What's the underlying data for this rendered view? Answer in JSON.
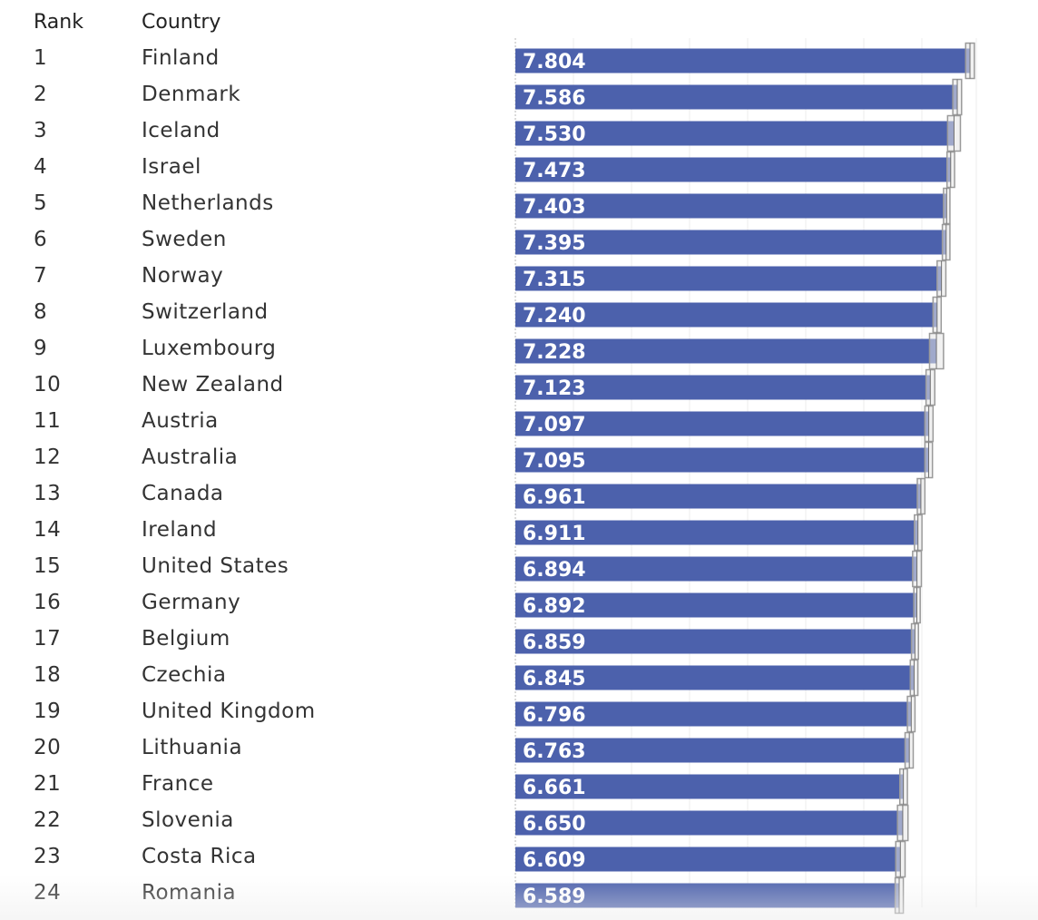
{
  "header": {
    "rank_label": "Rank",
    "country_label": "Country"
  },
  "chart_data": {
    "type": "bar",
    "orientation": "horizontal",
    "title": "",
    "xlabel": "",
    "ylabel": "",
    "bar_color": "#4c61ac",
    "ci_color": "#9a9a9a",
    "grid": true,
    "rows": [
      {
        "rank": "1",
        "country": "Finland",
        "value": 7.804,
        "label": "7.804"
      },
      {
        "rank": "2",
        "country": "Denmark",
        "value": 7.586,
        "label": "7.586"
      },
      {
        "rank": "3",
        "country": "Iceland",
        "value": 7.53,
        "label": "7.530"
      },
      {
        "rank": "4",
        "country": "Israel",
        "value": 7.473,
        "label": "7.473"
      },
      {
        "rank": "5",
        "country": "Netherlands",
        "value": 7.403,
        "label": "7.403"
      },
      {
        "rank": "6",
        "country": "Sweden",
        "value": 7.395,
        "label": "7.395"
      },
      {
        "rank": "7",
        "country": "Norway",
        "value": 7.315,
        "label": "7.315"
      },
      {
        "rank": "8",
        "country": "Switzerland",
        "value": 7.24,
        "label": "7.240"
      },
      {
        "rank": "9",
        "country": "Luxembourg",
        "value": 7.228,
        "label": "7.228"
      },
      {
        "rank": "10",
        "country": "New Zealand",
        "value": 7.123,
        "label": "7.123"
      },
      {
        "rank": "11",
        "country": "Austria",
        "value": 7.097,
        "label": "7.097"
      },
      {
        "rank": "12",
        "country": "Australia",
        "value": 7.095,
        "label": "7.095"
      },
      {
        "rank": "13",
        "country": "Canada",
        "value": 6.961,
        "label": "6.961"
      },
      {
        "rank": "14",
        "country": "Ireland",
        "value": 6.911,
        "label": "6.911"
      },
      {
        "rank": "15",
        "country": "United States",
        "value": 6.894,
        "label": "6.894"
      },
      {
        "rank": "16",
        "country": "Germany",
        "value": 6.892,
        "label": "6.892"
      },
      {
        "rank": "17",
        "country": "Belgium",
        "value": 6.859,
        "label": "6.859"
      },
      {
        "rank": "18",
        "country": "Czechia",
        "value": 6.845,
        "label": "6.845"
      },
      {
        "rank": "19",
        "country": "United Kingdom",
        "value": 6.796,
        "label": "6.796"
      },
      {
        "rank": "20",
        "country": "Lithuania",
        "value": 6.763,
        "label": "6.763"
      },
      {
        "rank": "21",
        "country": "France",
        "value": 6.661,
        "label": "6.661"
      },
      {
        "rank": "22",
        "country": "Slovenia",
        "value": 6.65,
        "label": "6.650"
      },
      {
        "rank": "23",
        "country": "Costa Rica",
        "value": 6.609,
        "label": "6.609"
      },
      {
        "rank": "24",
        "country": "Romania",
        "value": 6.589,
        "label": "6.589"
      }
    ],
    "ci": [
      [
        7.73,
        7.88
      ],
      [
        7.51,
        7.66
      ],
      [
        7.42,
        7.64
      ],
      [
        7.41,
        7.54
      ],
      [
        7.35,
        7.46
      ],
      [
        7.33,
        7.46
      ],
      [
        7.24,
        7.39
      ],
      [
        7.17,
        7.31
      ],
      [
        7.11,
        7.35
      ],
      [
        7.05,
        7.2
      ],
      [
        7.03,
        7.17
      ],
      [
        7.03,
        7.16
      ],
      [
        6.9,
        7.03
      ],
      [
        6.85,
        6.98
      ],
      [
        6.82,
        6.97
      ],
      [
        6.84,
        6.95
      ],
      [
        6.8,
        6.92
      ],
      [
        6.78,
        6.91
      ],
      [
        6.73,
        6.86
      ],
      [
        6.69,
        6.83
      ],
      [
        6.6,
        6.73
      ],
      [
        6.56,
        6.74
      ],
      [
        6.53,
        6.69
      ],
      [
        6.52,
        6.66
      ]
    ]
  }
}
